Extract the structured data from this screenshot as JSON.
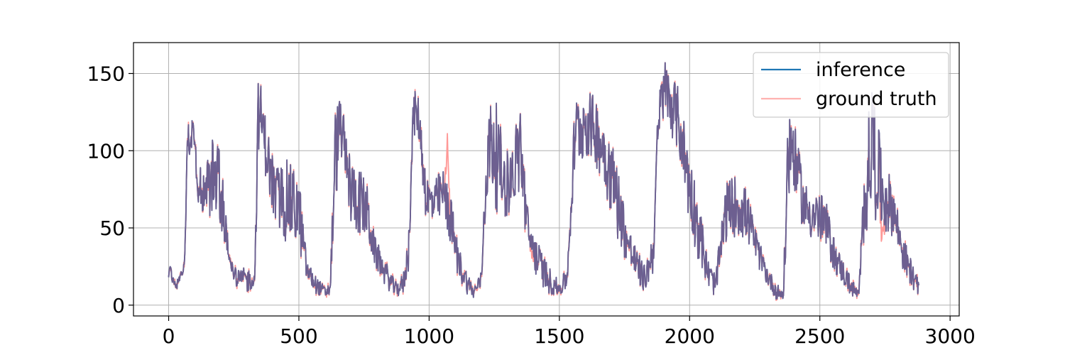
{
  "chart_data": {
    "type": "line",
    "title": "",
    "xlabel": "",
    "ylabel": "",
    "xlim": [
      -135,
      3035
    ],
    "ylim": [
      -7,
      170
    ],
    "x_ticks": [
      {
        "value": 0,
        "label": "0"
      },
      {
        "value": 500,
        "label": "500"
      },
      {
        "value": 1000,
        "label": "1000"
      },
      {
        "value": 1500,
        "label": "1500"
      },
      {
        "value": 2000,
        "label": "2000"
      },
      {
        "value": 2500,
        "label": "2500"
      },
      {
        "value": 3000,
        "label": "3000"
      }
    ],
    "y_ticks": [
      {
        "value": 0,
        "label": "0"
      },
      {
        "value": 50,
        "label": "50"
      },
      {
        "value": 100,
        "label": "100"
      },
      {
        "value": 150,
        "label": "150"
      }
    ],
    "grid": true,
    "legend_position": "top-right",
    "x_range": [
      0,
      2880
    ],
    "series": [
      {
        "name": "inference",
        "color": "#1f77b4",
        "envelope": {
          "x": [
            0,
            30,
            60,
            75,
            90,
            110,
            140,
            170,
            200,
            230,
            260,
            300,
            330,
            345,
            360,
            380,
            410,
            450,
            500,
            530,
            560,
            600,
            620,
            640,
            660,
            680,
            700,
            730,
            760,
            790,
            830,
            870,
            900,
            920,
            940,
            960,
            990,
            1020,
            1050,
            1080,
            1110,
            1140,
            1170,
            1200,
            1220,
            1240,
            1260,
            1290,
            1320,
            1350,
            1380,
            1420,
            1460,
            1500,
            1530,
            1560,
            1600,
            1640,
            1680,
            1720,
            1760,
            1800,
            1830,
            1860,
            1880,
            1900,
            1930,
            1960,
            2000,
            2040,
            2070,
            2100,
            2140,
            2180,
            2220,
            2260,
            2300,
            2330,
            2360,
            2380,
            2400,
            2440,
            2480,
            2520,
            2560,
            2600,
            2630,
            2650,
            2670,
            2700,
            2740,
            2780,
            2820,
            2850,
            2880
          ],
          "low": [
            18,
            10,
            20,
            95,
            100,
            60,
            55,
            58,
            50,
            25,
            12,
            7,
            12,
            100,
            95,
            75,
            45,
            40,
            35,
            15,
            8,
            4,
            6,
            60,
            100,
            70,
            50,
            45,
            40,
            25,
            12,
            5,
            6,
            20,
            110,
            105,
            50,
            48,
            55,
            40,
            18,
            8,
            4,
            10,
            65,
            70,
            60,
            55,
            60,
            70,
            30,
            15,
            7,
            5,
            10,
            85,
            95,
            90,
            70,
            45,
            25,
            12,
            8,
            20,
            90,
            120,
            110,
            95,
            50,
            25,
            10,
            5,
            40,
            45,
            40,
            25,
            12,
            4,
            2,
            60,
            75,
            45,
            40,
            35,
            20,
            10,
            4,
            3,
            40,
            60,
            45,
            45,
            20,
            12,
            6
          ],
          "high": [
            28,
            15,
            30,
            130,
            140,
            100,
            90,
            110,
            100,
            40,
            22,
            25,
            20,
            155,
            135,
            115,
            90,
            95,
            85,
            30,
            20,
            12,
            15,
            130,
            135,
            115,
            95,
            90,
            80,
            45,
            30,
            15,
            20,
            45,
            140,
            135,
            85,
            80,
            90,
            75,
            40,
            25,
            12,
            22,
            110,
            140,
            130,
            100,
            105,
            135,
            60,
            40,
            25,
            15,
            25,
            135,
            140,
            135,
            120,
            95,
            55,
            35,
            25,
            50,
            135,
            162,
            150,
            140,
            100,
            65,
            30,
            20,
            80,
            85,
            75,
            45,
            25,
            15,
            10,
            145,
            120,
            80,
            75,
            70,
            40,
            25,
            15,
            10,
            90,
            150,
            95,
            80,
            45,
            30,
            15
          ]
        }
      },
      {
        "name": "ground truth",
        "color": "#ff9896",
        "notable_deviations": [
          {
            "x": 1070,
            "y": 112
          },
          {
            "x": 1400,
            "y": 27
          },
          {
            "x": 2740,
            "y": 35
          }
        ]
      }
    ]
  }
}
